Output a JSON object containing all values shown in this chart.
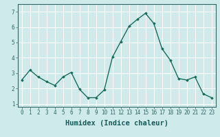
{
  "x": [
    0,
    1,
    2,
    3,
    4,
    5,
    6,
    7,
    8,
    9,
    10,
    11,
    12,
    13,
    14,
    15,
    16,
    17,
    18,
    19,
    20,
    21,
    22,
    23
  ],
  "y": [
    2.55,
    3.2,
    2.75,
    2.45,
    2.2,
    2.75,
    3.05,
    1.95,
    1.4,
    1.4,
    1.9,
    4.05,
    5.05,
    6.05,
    6.5,
    6.9,
    6.25,
    4.6,
    3.85,
    2.65,
    2.55,
    2.75,
    1.65,
    1.4
  ],
  "line_color": "#1a6b5a",
  "marker": "D",
  "marker_size": 1.8,
  "line_width": 1.0,
  "xlabel": "Humidex (Indice chaleur)",
  "xlim": [
    -0.5,
    23.5
  ],
  "ylim": [
    0.8,
    7.5
  ],
  "yticks": [
    1,
    2,
    3,
    4,
    5,
    6,
    7
  ],
  "xticks": [
    0,
    1,
    2,
    3,
    4,
    5,
    6,
    7,
    8,
    9,
    10,
    11,
    12,
    13,
    14,
    15,
    16,
    17,
    18,
    19,
    20,
    21,
    22,
    23
  ],
  "bg_color": "#ceeaea",
  "grid_color": "#ffffff",
  "tick_fontsize": 5.5,
  "xlabel_fontsize": 7.5,
  "spine_color": "#336666"
}
